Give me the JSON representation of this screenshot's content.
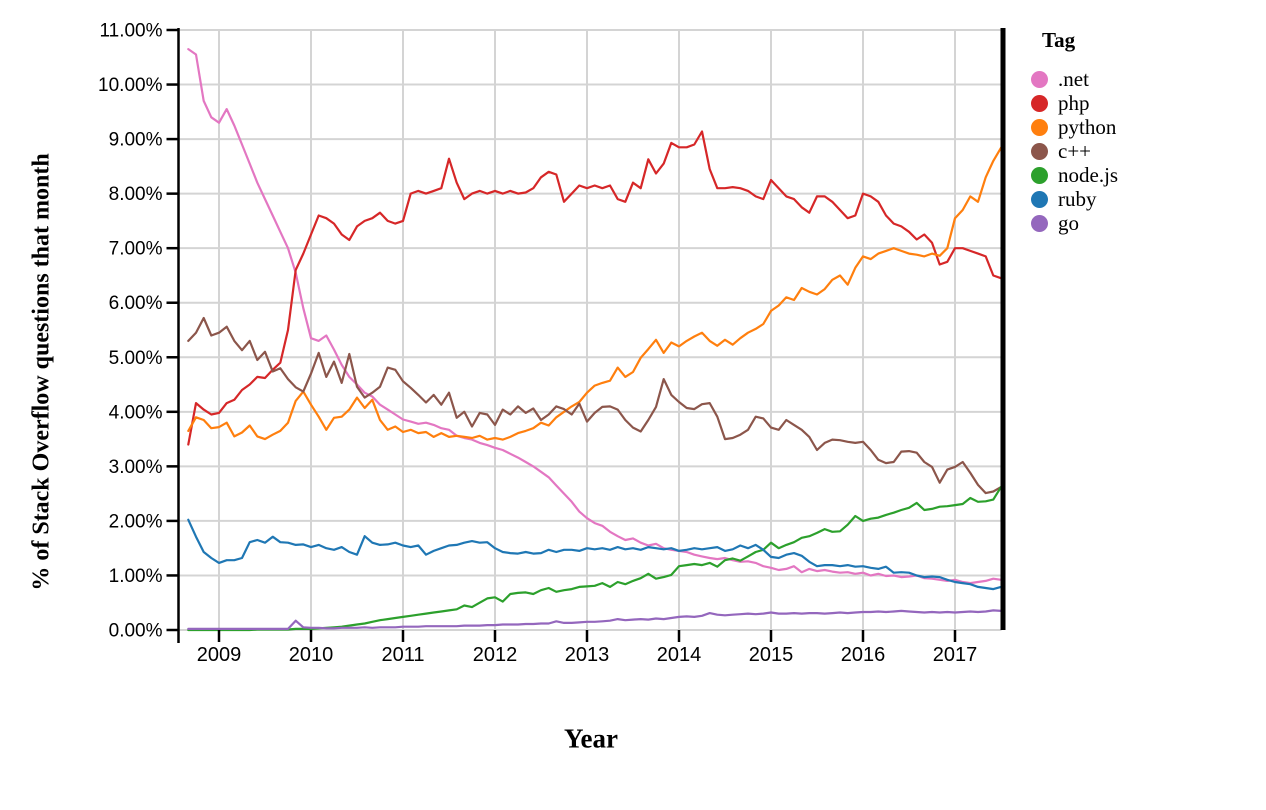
{
  "chart_data": {
    "type": "line",
    "title": "",
    "xlabel": "Year",
    "ylabel": "% of Stack Overflow questions that month",
    "legend_title": "Tag",
    "legend_position": "right",
    "grid": true,
    "x_axis": {
      "ticks": [
        2009,
        2010,
        2011,
        2012,
        2013,
        2014,
        2015,
        2016,
        2017
      ],
      "range_years": [
        2008.58,
        2017.55
      ]
    },
    "y_axis": {
      "tick_values": [
        0,
        1,
        2,
        3,
        4,
        5,
        6,
        7,
        8,
        9,
        10,
        11
      ],
      "tick_labels": [
        "0.00%",
        "1.00%",
        "2.00%",
        "3.00%",
        "4.00%",
        "5.00%",
        "6.00%",
        "7.00%",
        "8.00%",
        "9.00%",
        "10.00%",
        "11.00%"
      ],
      "range_percent": [
        0,
        11
      ]
    },
    "colors": {
      "axis": "#000000",
      "gridline": "#d4d4d4",
      "background": "#ffffff"
    },
    "months": [
      "2008-09",
      "2008-10",
      "2008-11",
      "2008-12",
      "2009-01",
      "2009-02",
      "2009-03",
      "2009-04",
      "2009-05",
      "2009-06",
      "2009-07",
      "2009-08",
      "2009-09",
      "2009-10",
      "2009-11",
      "2009-12",
      "2010-01",
      "2010-02",
      "2010-03",
      "2010-04",
      "2010-05",
      "2010-06",
      "2010-07",
      "2010-08",
      "2010-09",
      "2010-10",
      "2010-11",
      "2010-12",
      "2011-01",
      "2011-02",
      "2011-03",
      "2011-04",
      "2011-05",
      "2011-06",
      "2011-07",
      "2011-08",
      "2011-09",
      "2011-10",
      "2011-11",
      "2011-12",
      "2012-01",
      "2012-02",
      "2012-03",
      "2012-04",
      "2012-05",
      "2012-06",
      "2012-07",
      "2012-08",
      "2012-09",
      "2012-10",
      "2012-11",
      "2012-12",
      "2013-01",
      "2013-02",
      "2013-03",
      "2013-04",
      "2013-05",
      "2013-06",
      "2013-07",
      "2013-08",
      "2013-09",
      "2013-10",
      "2013-11",
      "2013-12",
      "2014-01",
      "2014-02",
      "2014-03",
      "2014-04",
      "2014-05",
      "2014-06",
      "2014-07",
      "2014-08",
      "2014-09",
      "2014-10",
      "2014-11",
      "2014-12",
      "2015-01",
      "2015-02",
      "2015-03",
      "2015-04",
      "2015-05",
      "2015-06",
      "2015-07",
      "2015-08",
      "2015-09",
      "2015-10",
      "2015-11",
      "2015-12",
      "2016-01",
      "2016-02",
      "2016-03",
      "2016-04",
      "2016-05",
      "2016-06",
      "2016-07",
      "2016-08",
      "2016-09",
      "2016-10",
      "2016-11",
      "2016-12",
      "2017-01",
      "2017-02",
      "2017-03",
      "2017-04",
      "2017-05",
      "2017-06",
      "2017-07"
    ],
    "series": [
      {
        "name": ".net",
        "color": "#e377c2",
        "values": [
          10.65,
          10.55,
          9.7,
          9.4,
          9.3,
          9.55,
          9.25,
          8.9,
          8.55,
          8.2,
          7.9,
          7.6,
          7.3,
          7.0,
          6.55,
          5.9,
          5.35,
          5.3,
          5.4,
          5.14,
          4.86,
          4.64,
          4.5,
          4.35,
          4.28,
          4.13,
          4.04,
          3.95,
          3.86,
          3.82,
          3.78,
          3.8,
          3.76,
          3.7,
          3.67,
          3.56,
          3.52,
          3.49,
          3.43,
          3.39,
          3.34,
          3.3,
          3.23,
          3.16,
          3.08,
          3.0,
          2.9,
          2.8,
          2.65,
          2.5,
          2.35,
          2.17,
          2.05,
          1.96,
          1.91,
          1.8,
          1.72,
          1.65,
          1.68,
          1.6,
          1.55,
          1.58,
          1.5,
          1.47,
          1.45,
          1.43,
          1.38,
          1.35,
          1.32,
          1.3,
          1.32,
          1.28,
          1.25,
          1.26,
          1.23,
          1.17,
          1.14,
          1.1,
          1.12,
          1.17,
          1.06,
          1.12,
          1.08,
          1.1,
          1.07,
          1.05,
          1.06,
          1.03,
          1.05,
          1.0,
          1.03,
          0.99,
          1.0,
          0.97,
          0.98,
          1.0,
          0.95,
          0.94,
          0.92,
          0.9,
          0.92,
          0.88,
          0.86,
          0.88,
          0.9,
          0.94,
          0.92
        ]
      },
      {
        "name": "php",
        "color": "#d62728",
        "values": [
          3.4,
          4.16,
          4.04,
          3.95,
          3.98,
          4.16,
          4.22,
          4.4,
          4.5,
          4.64,
          4.62,
          4.77,
          4.9,
          5.5,
          6.6,
          6.9,
          7.25,
          7.6,
          7.55,
          7.45,
          7.25,
          7.15,
          7.4,
          7.5,
          7.55,
          7.65,
          7.5,
          7.45,
          7.5,
          8.0,
          8.05,
          8.0,
          8.05,
          8.1,
          8.64,
          8.2,
          7.9,
          8.0,
          8.05,
          8.0,
          8.05,
          8.0,
          8.05,
          8.0,
          8.02,
          8.1,
          8.3,
          8.4,
          8.35,
          7.85,
          8.0,
          8.15,
          8.1,
          8.15,
          8.1,
          8.15,
          7.9,
          7.85,
          8.2,
          8.1,
          8.63,
          8.37,
          8.55,
          8.93,
          8.85,
          8.85,
          8.9,
          9.14,
          8.45,
          8.1,
          8.1,
          8.12,
          8.1,
          8.05,
          7.95,
          7.9,
          8.25,
          8.1,
          7.95,
          7.9,
          7.75,
          7.65,
          7.95,
          7.95,
          7.85,
          7.7,
          7.55,
          7.6,
          8.0,
          7.95,
          7.85,
          7.6,
          7.45,
          7.4,
          7.3,
          7.16,
          7.25,
          7.1,
          6.7,
          6.75,
          7.0,
          7.0,
          6.95,
          6.9,
          6.85,
          6.5,
          6.45
        ]
      },
      {
        "name": "python",
        "color": "#ff7f0e",
        "values": [
          3.65,
          3.9,
          3.85,
          3.7,
          3.72,
          3.8,
          3.55,
          3.62,
          3.75,
          3.55,
          3.5,
          3.58,
          3.65,
          3.8,
          4.2,
          4.37,
          4.13,
          3.91,
          3.67,
          3.89,
          3.91,
          4.04,
          4.26,
          4.07,
          4.22,
          3.85,
          3.67,
          3.73,
          3.63,
          3.67,
          3.61,
          3.63,
          3.54,
          3.61,
          3.54,
          3.56,
          3.54,
          3.52,
          3.56,
          3.49,
          3.52,
          3.49,
          3.54,
          3.61,
          3.65,
          3.7,
          3.8,
          3.75,
          3.9,
          4.0,
          4.1,
          4.18,
          4.35,
          4.48,
          4.53,
          4.57,
          4.81,
          4.64,
          4.73,
          4.99,
          5.15,
          5.32,
          5.08,
          5.27,
          5.2,
          5.3,
          5.38,
          5.45,
          5.3,
          5.21,
          5.32,
          5.23,
          5.35,
          5.45,
          5.52,
          5.61,
          5.85,
          5.95,
          6.1,
          6.05,
          6.27,
          6.2,
          6.15,
          6.25,
          6.42,
          6.5,
          6.33,
          6.64,
          6.85,
          6.8,
          6.9,
          6.95,
          7.0,
          6.95,
          6.9,
          6.88,
          6.85,
          6.9,
          6.86,
          7.0,
          7.55,
          7.7,
          7.95,
          7.85,
          8.3,
          8.6,
          8.84
        ]
      },
      {
        "name": "c++",
        "color": "#8c564b",
        "values": [
          5.3,
          5.45,
          5.72,
          5.4,
          5.45,
          5.56,
          5.3,
          5.13,
          5.3,
          4.95,
          5.1,
          4.74,
          4.8,
          4.6,
          4.45,
          4.37,
          4.7,
          5.08,
          4.64,
          4.92,
          4.53,
          5.06,
          4.46,
          4.26,
          4.35,
          4.46,
          4.81,
          4.77,
          4.56,
          4.44,
          4.31,
          4.17,
          4.31,
          4.13,
          4.35,
          3.89,
          4.0,
          3.73,
          3.98,
          3.95,
          3.76,
          4.04,
          3.95,
          4.1,
          3.98,
          4.06,
          3.85,
          3.95,
          4.1,
          4.05,
          3.95,
          4.15,
          3.82,
          3.98,
          4.09,
          4.1,
          4.04,
          3.85,
          3.71,
          3.64,
          3.85,
          4.09,
          4.6,
          4.31,
          4.18,
          4.07,
          4.05,
          4.14,
          4.16,
          3.91,
          3.5,
          3.52,
          3.58,
          3.67,
          3.91,
          3.88,
          3.71,
          3.67,
          3.85,
          3.76,
          3.67,
          3.54,
          3.3,
          3.43,
          3.49,
          3.48,
          3.45,
          3.43,
          3.45,
          3.3,
          3.12,
          3.06,
          3.08,
          3.27,
          3.28,
          3.25,
          3.08,
          2.99,
          2.7,
          2.94,
          2.99,
          3.08,
          2.88,
          2.66,
          2.51,
          2.54,
          2.62
        ]
      },
      {
        "name": "node.js",
        "color": "#2ca02c",
        "values": [
          0.0,
          0.0,
          0.0,
          0.0,
          0.0,
          0.0,
          0.0,
          0.0,
          0.0,
          0.01,
          0.01,
          0.01,
          0.01,
          0.01,
          0.02,
          0.02,
          0.02,
          0.03,
          0.04,
          0.05,
          0.06,
          0.08,
          0.1,
          0.12,
          0.15,
          0.18,
          0.2,
          0.22,
          0.24,
          0.26,
          0.28,
          0.3,
          0.32,
          0.34,
          0.36,
          0.38,
          0.45,
          0.42,
          0.5,
          0.58,
          0.6,
          0.52,
          0.66,
          0.68,
          0.69,
          0.66,
          0.73,
          0.77,
          0.7,
          0.73,
          0.75,
          0.79,
          0.8,
          0.81,
          0.86,
          0.79,
          0.88,
          0.84,
          0.9,
          0.95,
          1.03,
          0.94,
          0.97,
          1.01,
          1.17,
          1.19,
          1.21,
          1.19,
          1.23,
          1.16,
          1.28,
          1.31,
          1.27,
          1.35,
          1.43,
          1.47,
          1.6,
          1.5,
          1.56,
          1.61,
          1.69,
          1.72,
          1.78,
          1.85,
          1.8,
          1.81,
          1.93,
          2.09,
          2.0,
          2.04,
          2.06,
          2.11,
          2.15,
          2.2,
          2.24,
          2.33,
          2.2,
          2.22,
          2.26,
          2.27,
          2.29,
          2.31,
          2.42,
          2.35,
          2.36,
          2.39,
          2.62
        ]
      },
      {
        "name": "ruby",
        "color": "#1f77b4",
        "values": [
          2.02,
          1.71,
          1.43,
          1.32,
          1.23,
          1.28,
          1.28,
          1.32,
          1.61,
          1.65,
          1.6,
          1.71,
          1.61,
          1.6,
          1.56,
          1.57,
          1.52,
          1.56,
          1.5,
          1.47,
          1.52,
          1.43,
          1.38,
          1.72,
          1.6,
          1.56,
          1.57,
          1.6,
          1.55,
          1.52,
          1.55,
          1.38,
          1.45,
          1.5,
          1.55,
          1.56,
          1.6,
          1.63,
          1.6,
          1.61,
          1.5,
          1.43,
          1.41,
          1.4,
          1.43,
          1.4,
          1.41,
          1.47,
          1.43,
          1.47,
          1.47,
          1.45,
          1.5,
          1.48,
          1.5,
          1.47,
          1.52,
          1.48,
          1.5,
          1.47,
          1.52,
          1.5,
          1.48,
          1.5,
          1.45,
          1.47,
          1.5,
          1.48,
          1.5,
          1.52,
          1.45,
          1.48,
          1.55,
          1.5,
          1.56,
          1.47,
          1.34,
          1.32,
          1.38,
          1.41,
          1.36,
          1.25,
          1.17,
          1.19,
          1.19,
          1.17,
          1.19,
          1.16,
          1.17,
          1.14,
          1.12,
          1.16,
          1.05,
          1.06,
          1.05,
          1.0,
          0.97,
          0.98,
          0.97,
          0.92,
          0.88,
          0.86,
          0.84,
          0.79,
          0.77,
          0.75,
          0.79
        ]
      },
      {
        "name": "go",
        "color": "#9467bd",
        "values": [
          0.02,
          0.02,
          0.02,
          0.02,
          0.02,
          0.02,
          0.02,
          0.02,
          0.02,
          0.02,
          0.02,
          0.02,
          0.02,
          0.02,
          0.17,
          0.05,
          0.04,
          0.04,
          0.03,
          0.03,
          0.04,
          0.04,
          0.04,
          0.05,
          0.04,
          0.05,
          0.05,
          0.05,
          0.06,
          0.06,
          0.06,
          0.07,
          0.07,
          0.07,
          0.07,
          0.07,
          0.08,
          0.08,
          0.08,
          0.09,
          0.09,
          0.1,
          0.1,
          0.1,
          0.11,
          0.11,
          0.12,
          0.12,
          0.16,
          0.13,
          0.13,
          0.14,
          0.15,
          0.15,
          0.16,
          0.17,
          0.2,
          0.18,
          0.19,
          0.2,
          0.19,
          0.21,
          0.2,
          0.22,
          0.24,
          0.25,
          0.24,
          0.26,
          0.31,
          0.28,
          0.27,
          0.28,
          0.29,
          0.3,
          0.29,
          0.3,
          0.32,
          0.3,
          0.3,
          0.31,
          0.3,
          0.31,
          0.31,
          0.3,
          0.31,
          0.32,
          0.31,
          0.32,
          0.33,
          0.33,
          0.34,
          0.33,
          0.34,
          0.35,
          0.34,
          0.33,
          0.32,
          0.33,
          0.32,
          0.33,
          0.32,
          0.33,
          0.34,
          0.33,
          0.34,
          0.36,
          0.35
        ]
      }
    ]
  }
}
